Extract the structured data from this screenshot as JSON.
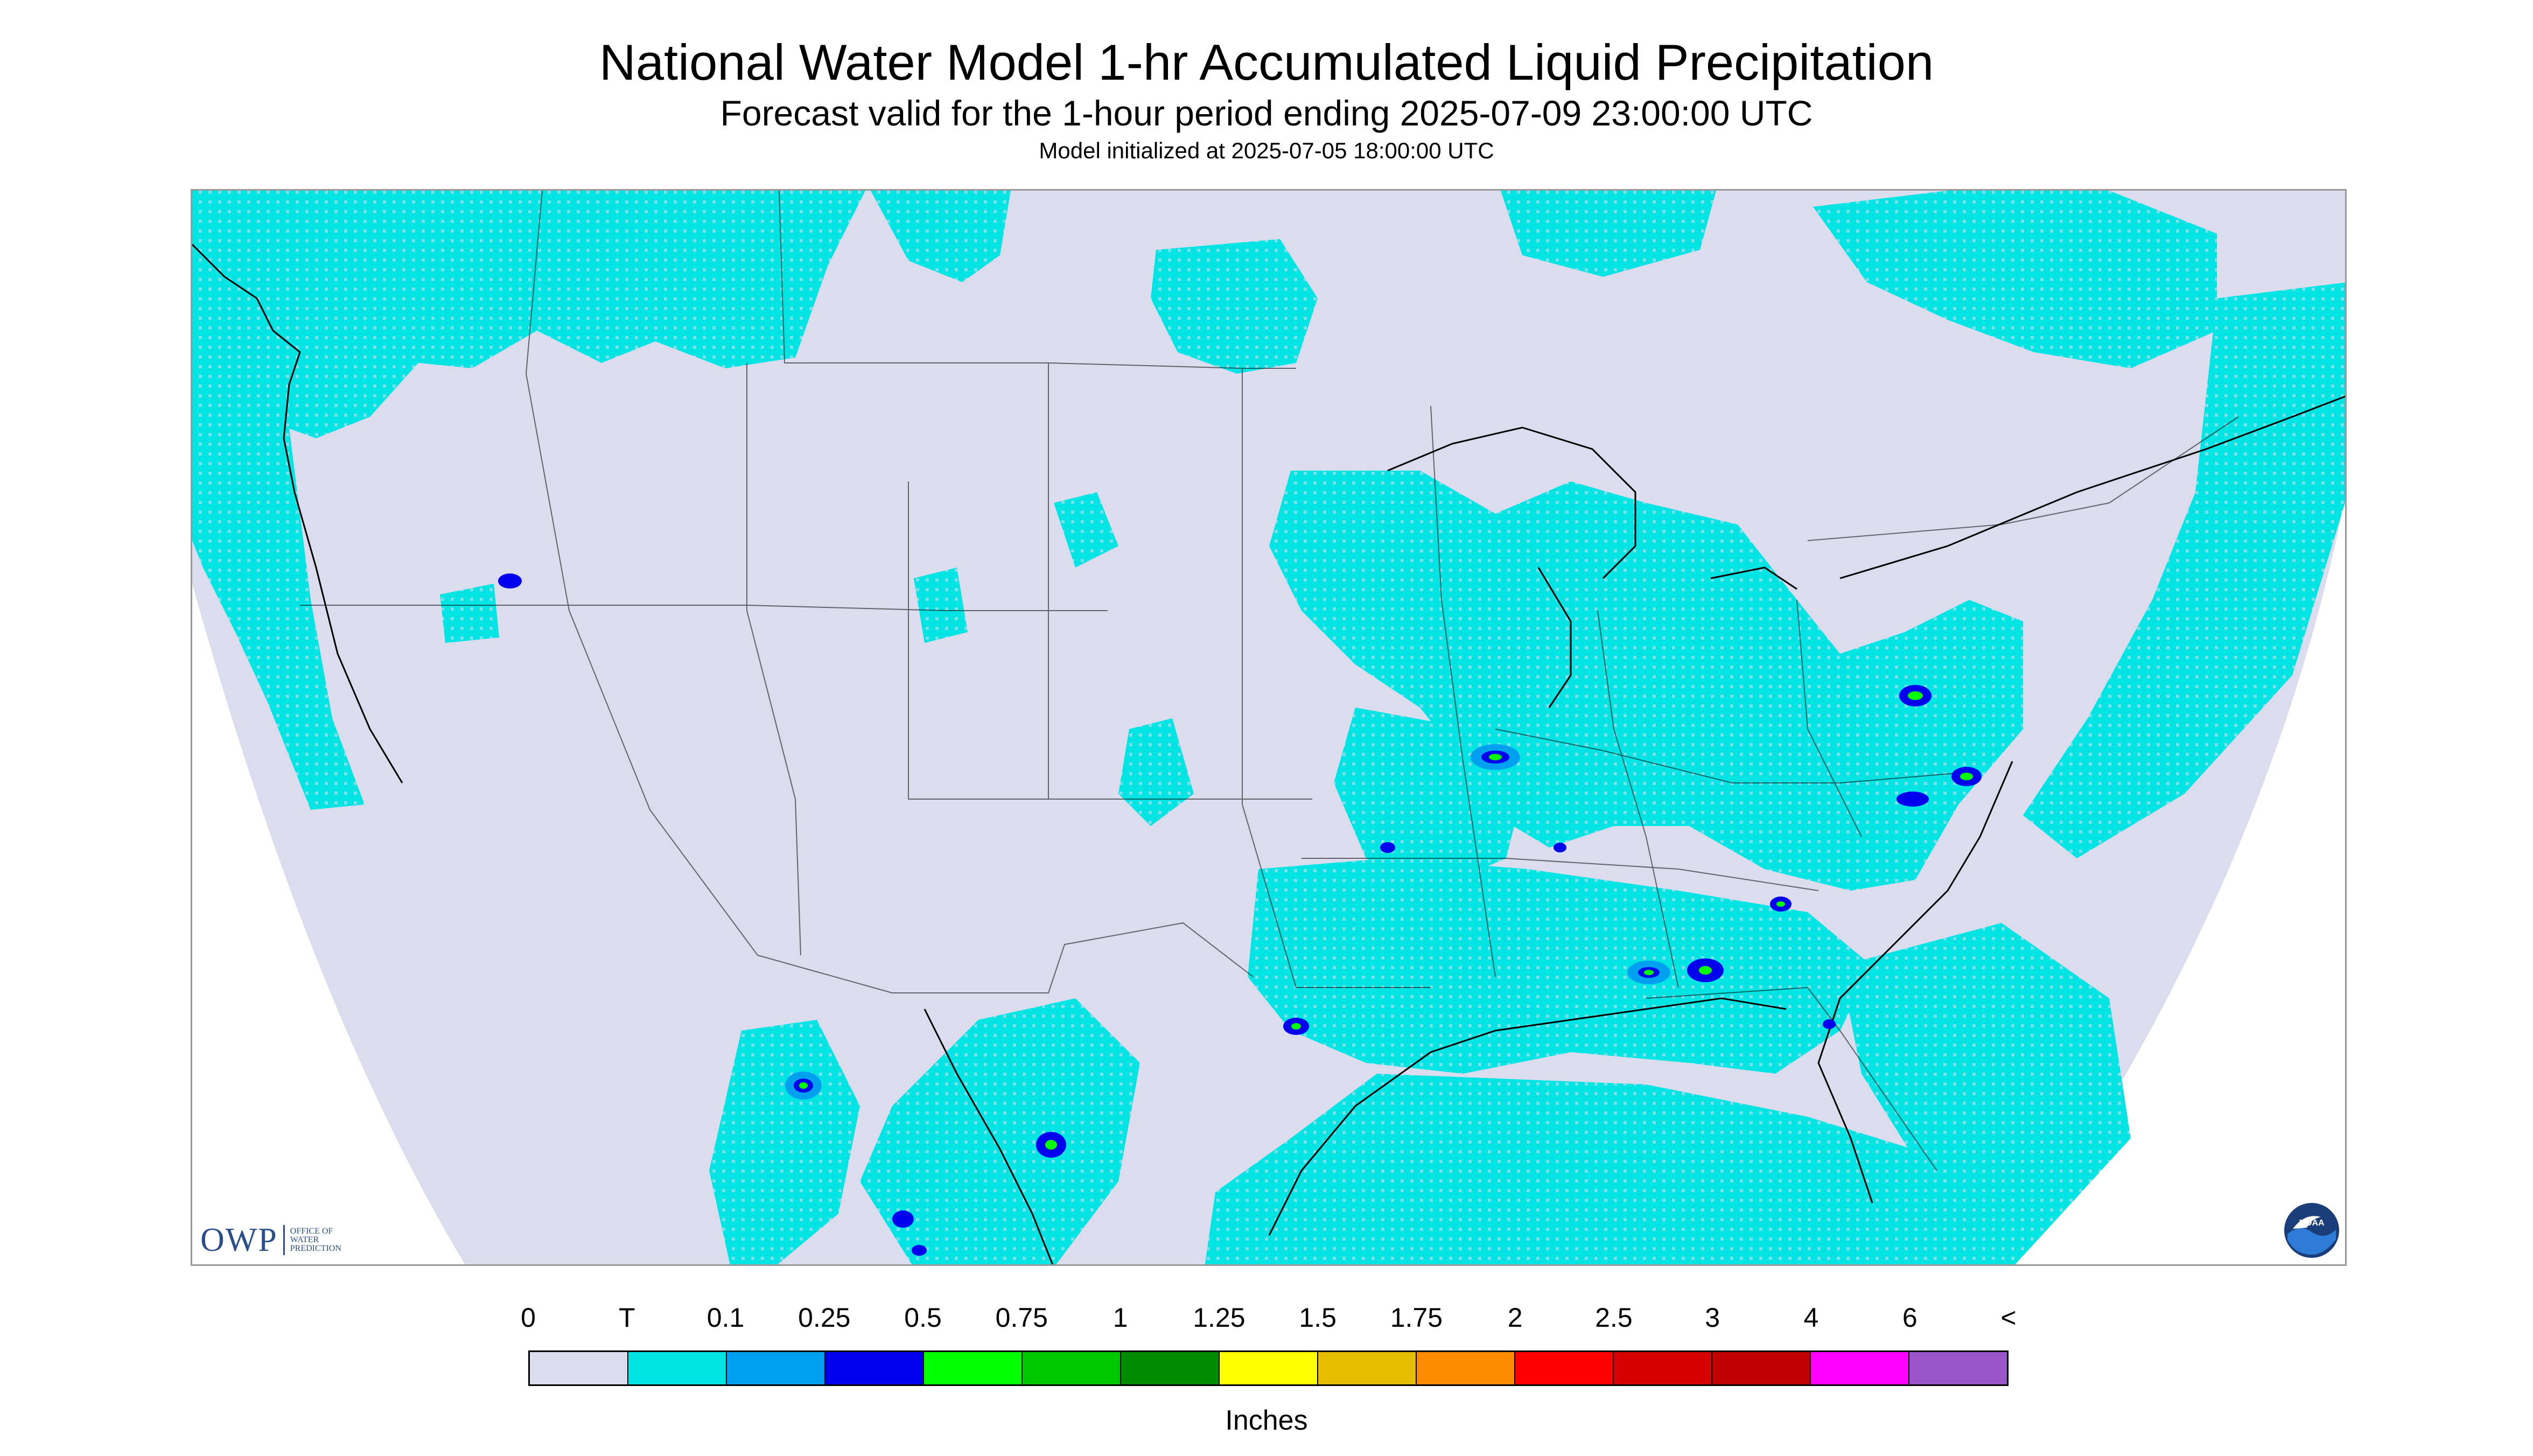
{
  "header": {
    "title": "National Water Model 1-hr Accumulated Liquid Precipitation",
    "subtitle": "Forecast valid for the 1-hour period ending 2025-07-09 23:00:00 UTC",
    "init": "Model initialized at 2025-07-05 18:00:00 UTC"
  },
  "map": {
    "projection_background": "#dcdcef",
    "outside_background": "#ffffff",
    "boundary_color": "#000000"
  },
  "logos": {
    "owp": {
      "text": "OWP",
      "sub1": "OFFICE OF",
      "sub2": "WATER",
      "sub3": "PREDICTION"
    },
    "noaa": {
      "text": "NOAA",
      "icon": "noaa-seal-icon"
    }
  },
  "legend": {
    "tick_labels": [
      "0",
      "T",
      "0.1",
      "0.25",
      "0.5",
      "0.75",
      "1",
      "1.25",
      "1.5",
      "1.75",
      "2",
      "2.5",
      "3",
      "4",
      "6",
      "<"
    ],
    "colors": [
      "#dcdcef",
      "#00e4e4",
      "#00a0f0",
      "#0000ee",
      "#00ff00",
      "#00c800",
      "#008c00",
      "#ffff00",
      "#e6be00",
      "#ff8c00",
      "#ff0000",
      "#d70000",
      "#c00000",
      "#ff00ff",
      "#9955c9"
    ],
    "units": "Inches"
  }
}
